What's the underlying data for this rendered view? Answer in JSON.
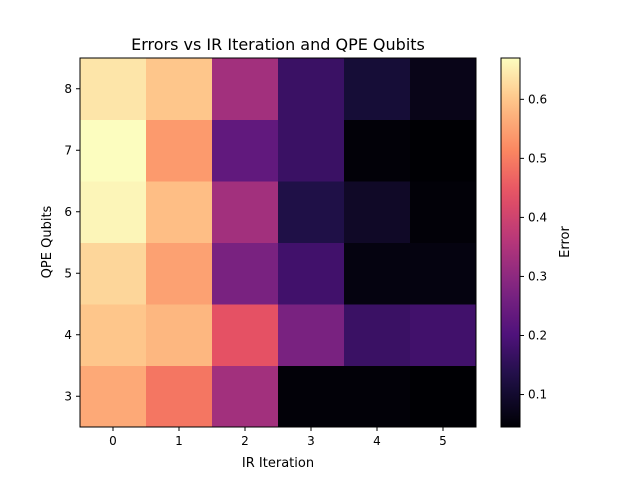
{
  "chart_data": {
    "type": "heatmap",
    "title": "Errors vs IR Iteration and QPE Qubits",
    "xlabel": "IR Iteration",
    "ylabel": "QPE Qubits",
    "x": [
      0,
      1,
      2,
      3,
      4,
      5
    ],
    "y": [
      3,
      4,
      5,
      6,
      7,
      8
    ],
    "x_tick_labels": [
      "0",
      "1",
      "2",
      "3",
      "4",
      "5"
    ],
    "y_tick_labels": [
      "3",
      "4",
      "5",
      "6",
      "7",
      "8"
    ],
    "values": [
      [
        0.56,
        0.49,
        0.33,
        0.05,
        0.05,
        0.045
      ],
      [
        0.6,
        0.58,
        0.44,
        0.27,
        0.17,
        0.18
      ],
      [
        0.62,
        0.55,
        0.27,
        0.18,
        0.06,
        0.06
      ],
      [
        0.66,
        0.59,
        0.33,
        0.13,
        0.09,
        0.05
      ],
      [
        0.67,
        0.54,
        0.23,
        0.17,
        0.05,
        0.04
      ],
      [
        0.64,
        0.6,
        0.33,
        0.17,
        0.11,
        0.07
      ]
    ],
    "colormap": "magma",
    "vmin": 0.045,
    "vmax": 0.67,
    "colorbar": {
      "label": "Error",
      "ticks": [
        0.1,
        0.2,
        0.3,
        0.4,
        0.5,
        0.6
      ],
      "tick_labels": [
        "0.1",
        "0.2",
        "0.3",
        "0.4",
        "0.5",
        "0.6"
      ]
    }
  }
}
